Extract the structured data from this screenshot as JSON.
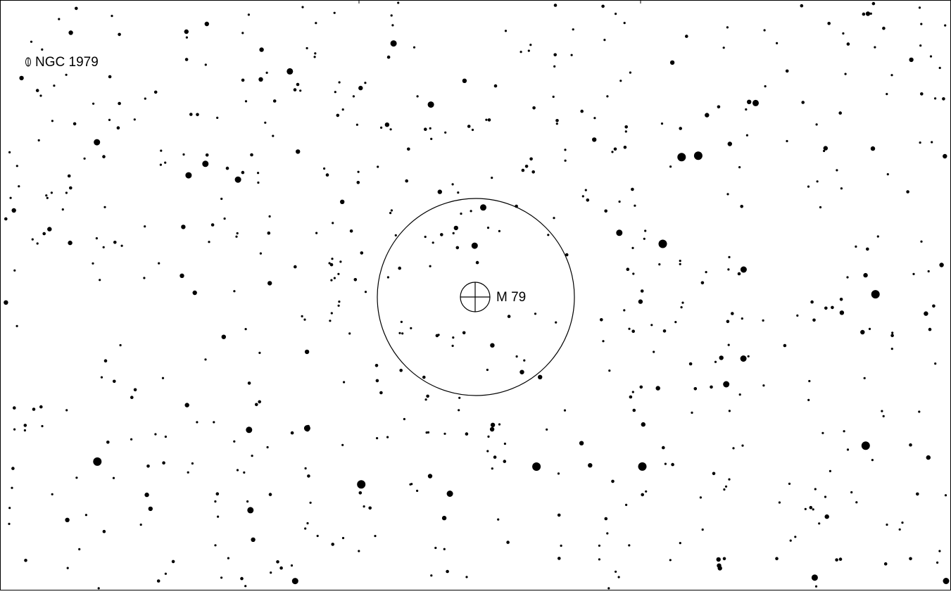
{
  "map": {
    "labels": [
      "NGC 1979",
      "M 79"
    ]
  }
}
